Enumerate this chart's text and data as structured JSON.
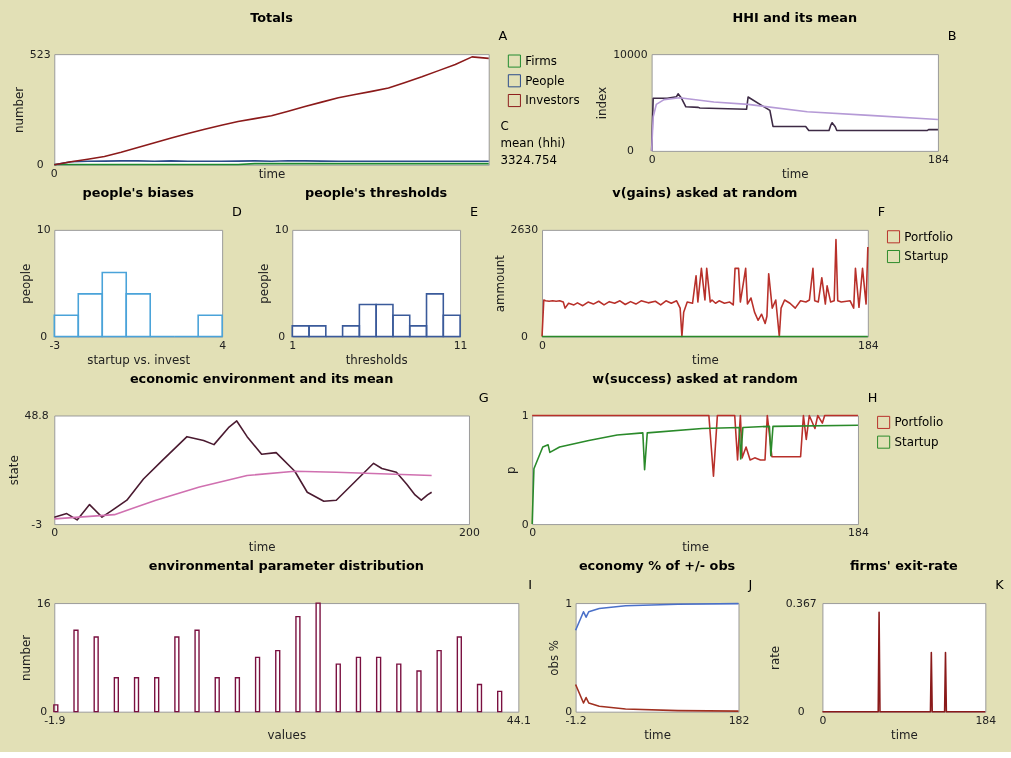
{
  "chart_data": [
    {
      "type": "line",
      "title": "Totals",
      "xlabel": "time",
      "ylabel": "number",
      "ylim": [
        0,
        523
      ],
      "yticks": [
        0,
        523
      ],
      "legend": "right",
      "annotations": [
        "A",
        "C",
        "mean (hhi)",
        "3324.754",
        "0"
      ],
      "categories": [
        null,
        null,
        null,
        null,
        null,
        null,
        null,
        null,
        null,
        null,
        null,
        null,
        null,
        null,
        null,
        null,
        null,
        null,
        null,
        null,
        null,
        null,
        null,
        null,
        null,
        null,
        null
      ],
      "series": [
        {
          "name": "Firms",
          "color": "#1e8a2e",
          "values": [
            1,
            1,
            1,
            1,
            1,
            1,
            1,
            1,
            1,
            1,
            1,
            1,
            5,
            5,
            5,
            5,
            5,
            5,
            5,
            5,
            5,
            5,
            5,
            5,
            5,
            5,
            5
          ]
        },
        {
          "name": "People",
          "color": "#2a4a8a",
          "values": [
            0,
            14,
            16,
            17,
            18,
            18,
            16,
            18,
            16,
            16,
            16,
            17,
            18,
            16,
            19,
            18,
            17,
            16,
            16,
            16,
            16,
            16,
            16,
            16,
            16,
            16,
            16
          ]
        },
        {
          "name": "Investors",
          "color": "#8b1a1a",
          "values": [
            0,
            14,
            26,
            39,
            59,
            81,
            104,
            126,
            148,
            168,
            187,
            204,
            218,
            232,
            253,
            275,
            296,
            317,
            332,
            347,
            363,
            389,
            416,
            445,
            474,
            510,
            503
          ]
        }
      ]
    },
    {
      "type": "line",
      "title": "HHI and its mean",
      "xlabel": "time",
      "ylabel": "index",
      "xlim": [
        0,
        184
      ],
      "ylim": [
        0,
        10000
      ],
      "xticks": [
        0,
        184
      ],
      "yticks": [
        0,
        10000
      ],
      "annotations": [
        "B"
      ],
      "series": [
        {
          "color": "#3d2a45",
          "x": [
            0,
            1,
            10,
            14,
            16,
            17,
            19,
            22,
            30,
            31,
            61,
            62,
            76,
            78,
            99,
            101,
            114,
            115,
            116,
            118,
            119,
            177,
            178,
            184
          ],
          "values": [
            0,
            5440,
            5440,
            5550,
            5600,
            5900,
            5500,
            4560,
            4500,
            4430,
            4300,
            5570,
            4180,
            2530,
            2530,
            2100,
            2100,
            2600,
            2910,
            2500,
            2100,
            2100,
            2200,
            2200
          ]
        },
        {
          "color": "#b59ad6",
          "x": [
            0,
            1,
            3,
            8,
            18,
            40,
            62,
            100,
            140,
            184
          ],
          "values": [
            0,
            3500,
            4800,
            5300,
            5500,
            5060,
            4810,
            4050,
            3670,
            3240
          ]
        }
      ]
    },
    {
      "type": "histogram",
      "title": "people's biases",
      "xlabel": "startup vs. invest",
      "ylabel": "people",
      "xlim": [
        -3,
        4
      ],
      "ylim": [
        0,
        10
      ],
      "xticks": [
        -3,
        4
      ],
      "yticks": [
        0,
        10
      ],
      "annotations": [
        "D"
      ],
      "color": "#4aa3d9",
      "bins": [
        -3,
        -2,
        -1,
        0,
        1,
        2,
        3,
        4
      ],
      "values": [
        2,
        4,
        6,
        4,
        0,
        0,
        2
      ]
    },
    {
      "type": "histogram",
      "title": "people's thresholds",
      "xlabel": "thresholds",
      "ylabel": "people",
      "xlim": [
        1,
        11
      ],
      "ylim": [
        0,
        10
      ],
      "xticks": [
        1,
        11
      ],
      "yticks": [
        0,
        10
      ],
      "annotations": [
        "E"
      ],
      "color": "#3a5a9a",
      "bins": [
        1,
        2,
        3,
        4,
        5,
        6,
        7,
        8,
        9,
        10,
        11
      ],
      "values": [
        1,
        1,
        0,
        1,
        3,
        3,
        2,
        1,
        4,
        2
      ]
    },
    {
      "type": "line",
      "title": "v(gains) asked at random",
      "xlabel": "time",
      "ylabel": "ammount",
      "xlim": [
        0,
        184
      ],
      "ylim": [
        0,
        2630
      ],
      "xticks": [
        0,
        184
      ],
      "yticks": [
        0,
        2630
      ],
      "legend": "right",
      "annotations": [
        "F"
      ],
      "series": [
        {
          "name": "Portfolio",
          "color": "#b8302a",
          "x": [
            0,
            1,
            2,
            4,
            6,
            8,
            10,
            12,
            13,
            15,
            18,
            20,
            23,
            26,
            29,
            32,
            35,
            38,
            41,
            44,
            47,
            50,
            53,
            56,
            60,
            64,
            67,
            70,
            73,
            76,
            78,
            79,
            80,
            82,
            85,
            87,
            88,
            90,
            92,
            93,
            95,
            96,
            98,
            100,
            103,
            106,
            108,
            109,
            111,
            112,
            115,
            116,
            118,
            120,
            122,
            124,
            126,
            127,
            128,
            130,
            132,
            134,
            135,
            137,
            140,
            143,
            146,
            149,
            151,
            153,
            154,
            156,
            158,
            160,
            161,
            163,
            165,
            166,
            167,
            169,
            172,
            174,
            176,
            177,
            179,
            181,
            183,
            184
          ],
          "values": [
            0,
            900,
            880,
            870,
            880,
            870,
            880,
            850,
            700,
            820,
            780,
            830,
            760,
            850,
            800,
            870,
            780,
            860,
            820,
            880,
            790,
            860,
            800,
            880,
            830,
            870,
            780,
            880,
            820,
            880,
            700,
            0,
            600,
            850,
            820,
            1500,
            850,
            1680,
            900,
            1680,
            850,
            900,
            820,
            880,
            820,
            850,
            780,
            1680,
            1680,
            850,
            1680,
            800,
            950,
            600,
            400,
            550,
            320,
            500,
            1550,
            700,
            900,
            0,
            700,
            900,
            820,
            700,
            880,
            850,
            900,
            1680,
            880,
            850,
            1450,
            800,
            1250,
            850,
            880,
            2390,
            880,
            850,
            870,
            880,
            700,
            1680,
            720,
            1680,
            800,
            2210
          ]
        },
        {
          "name": "Startup",
          "color": "#2a8a2a",
          "x": [
            0,
            184
          ],
          "values": [
            0,
            0
          ]
        }
      ]
    },
    {
      "type": "line",
      "title": "economic environment and its mean",
      "xlabel": "time",
      "ylabel": "state",
      "xlim": [
        0,
        200
      ],
      "ylim": [
        -3,
        48.8
      ],
      "xticks": [
        0,
        200
      ],
      "yticks": [
        -3,
        48.8
      ],
      "annotations": [
        "G"
      ],
      "series": [
        {
          "color": "#4a1a30",
          "x": [
            0,
            6,
            11,
            17,
            23,
            27.5,
            35,
            43,
            52,
            64,
            72,
            77,
            84,
            88,
            93,
            100,
            107,
            116,
            122,
            130,
            136,
            145,
            154,
            158,
            165,
            170,
            174,
            177,
            180,
            182
          ],
          "values": [
            0.3,
            2,
            -1,
            6.3,
            0.3,
            3.3,
            8.4,
            18.5,
            27.3,
            38.7,
            36.9,
            34.9,
            43,
            46.2,
            38.7,
            30.3,
            31.1,
            22.2,
            12.2,
            7.9,
            8.4,
            17.2,
            26,
            23.5,
            21.7,
            16,
            10.9,
            8.4,
            10.9,
            12.2
          ]
        },
        {
          "color": "#d070b0",
          "x": [
            0,
            29,
            49,
            70,
            93,
            116,
            136,
            182
          ],
          "values": [
            -0.5,
            1.5,
            8.4,
            14.7,
            20.2,
            22.2,
            21.7,
            20.2
          ]
        }
      ]
    },
    {
      "type": "line",
      "title": "w(success) asked at random",
      "xlabel": "time",
      "ylabel": "p",
      "xlim": [
        0,
        184
      ],
      "ylim": [
        0,
        1
      ],
      "xticks": [
        0,
        184
      ],
      "yticks": [
        0,
        1
      ],
      "legend": "right",
      "annotations": [
        "H"
      ],
      "series": [
        {
          "name": "Portfolio",
          "color": "#b8302a",
          "x": [
            0,
            99.8,
            102.4,
            104.6,
            114.4,
            116,
            117.6,
            118.6,
            120.8,
            123.1,
            125.7,
            128.9,
            131.5,
            132.8,
            135.4,
            151.6,
            153.2,
            154.8,
            156.5,
            159.7,
            161.3,
            163.9,
            165.2,
            184
          ],
          "values": [
            1,
            1,
            0.44,
            1,
            1,
            0.59,
            1,
            0.61,
            0.71,
            0.59,
            0.61,
            0.59,
            0.59,
            1,
            0.62,
            0.62,
            1,
            0.78,
            1,
            0.88,
            1,
            0.93,
            1,
            1
          ]
        },
        {
          "name": "Startup",
          "color": "#2a8a2a",
          "x": [
            0,
            1,
            3,
            6,
            9,
            10,
            15.5,
            32,
            48,
            62.5,
            63.5,
            65,
            96,
            117,
            117.8,
            119,
            134,
            134.8,
            136,
            184
          ],
          "values": [
            0,
            0.51,
            0.59,
            0.71,
            0.73,
            0.66,
            0.71,
            0.77,
            0.82,
            0.84,
            0.5,
            0.84,
            0.88,
            0.89,
            0.6,
            0.89,
            0.9,
            0.63,
            0.9,
            0.91
          ]
        }
      ]
    },
    {
      "type": "bar",
      "title": "environmental parameter distribution",
      "xlabel": "values",
      "ylabel": "number",
      "xlim": [
        -1.9,
        44.1
      ],
      "ylim": [
        0,
        16
      ],
      "xticks": [
        -1.9,
        44.1
      ],
      "yticks": [
        0,
        16
      ],
      "annotations": [
        "I"
      ],
      "color": "#7a1040",
      "x": [
        -1.75,
        0.25,
        2.25,
        4.25,
        6.25,
        8.25,
        10.25,
        12.25,
        14.25,
        16.25,
        18.25,
        20.25,
        22.25,
        24.25,
        26.25,
        28.25,
        30.25,
        32.25,
        34.25,
        36.25,
        38.25,
        40.25,
        42.25
      ],
      "values": [
        1,
        12,
        11,
        5,
        5,
        5,
        11,
        12,
        5,
        5,
        8,
        9,
        14,
        16,
        7,
        8,
        8,
        7,
        6,
        9,
        11,
        4,
        3
      ]
    },
    {
      "type": "line",
      "title": "economy % of +/- obs",
      "xlabel": "time",
      "ylabel": "obs %",
      "xlim": [
        -1.2,
        182
      ],
      "ylim": [
        0,
        1
      ],
      "xticks": [
        -1.2,
        182
      ],
      "yticks": [
        0,
        1
      ],
      "annotations": [
        "J"
      ],
      "series": [
        {
          "color": "#4a70c8",
          "x": [
            -1.2,
            7.7,
            10.6,
            13.6,
            25.4,
            55,
            114,
            182
          ],
          "values": [
            0.75,
            0.92,
            0.87,
            0.92,
            0.95,
            0.975,
            0.99,
            0.995
          ]
        },
        {
          "color": "#a03020",
          "x": [
            -1.2,
            7.7,
            10.6,
            13.6,
            25.4,
            55,
            114,
            182
          ],
          "values": [
            0.25,
            0.08,
            0.13,
            0.08,
            0.05,
            0.025,
            0.01,
            0.005
          ]
        }
      ]
    },
    {
      "type": "line",
      "title": "firms' exit-rate",
      "xlabel": "time",
      "ylabel": "rate",
      "xlim": [
        0,
        184
      ],
      "ylim": [
        0,
        0.367
      ],
      "xticks": [
        0,
        184
      ],
      "yticks": [
        0,
        0.367
      ],
      "annotations": [
        "K"
      ],
      "series": [
        {
          "color": "#8a1a1a",
          "x": [
            0,
            63,
            64,
            65,
            122,
            123,
            124,
            138,
            139,
            140,
            184
          ],
          "values": [
            0,
            0,
            0.336,
            0,
            0,
            0.2,
            0,
            0,
            0.2,
            0,
            0
          ]
        }
      ]
    }
  ]
}
